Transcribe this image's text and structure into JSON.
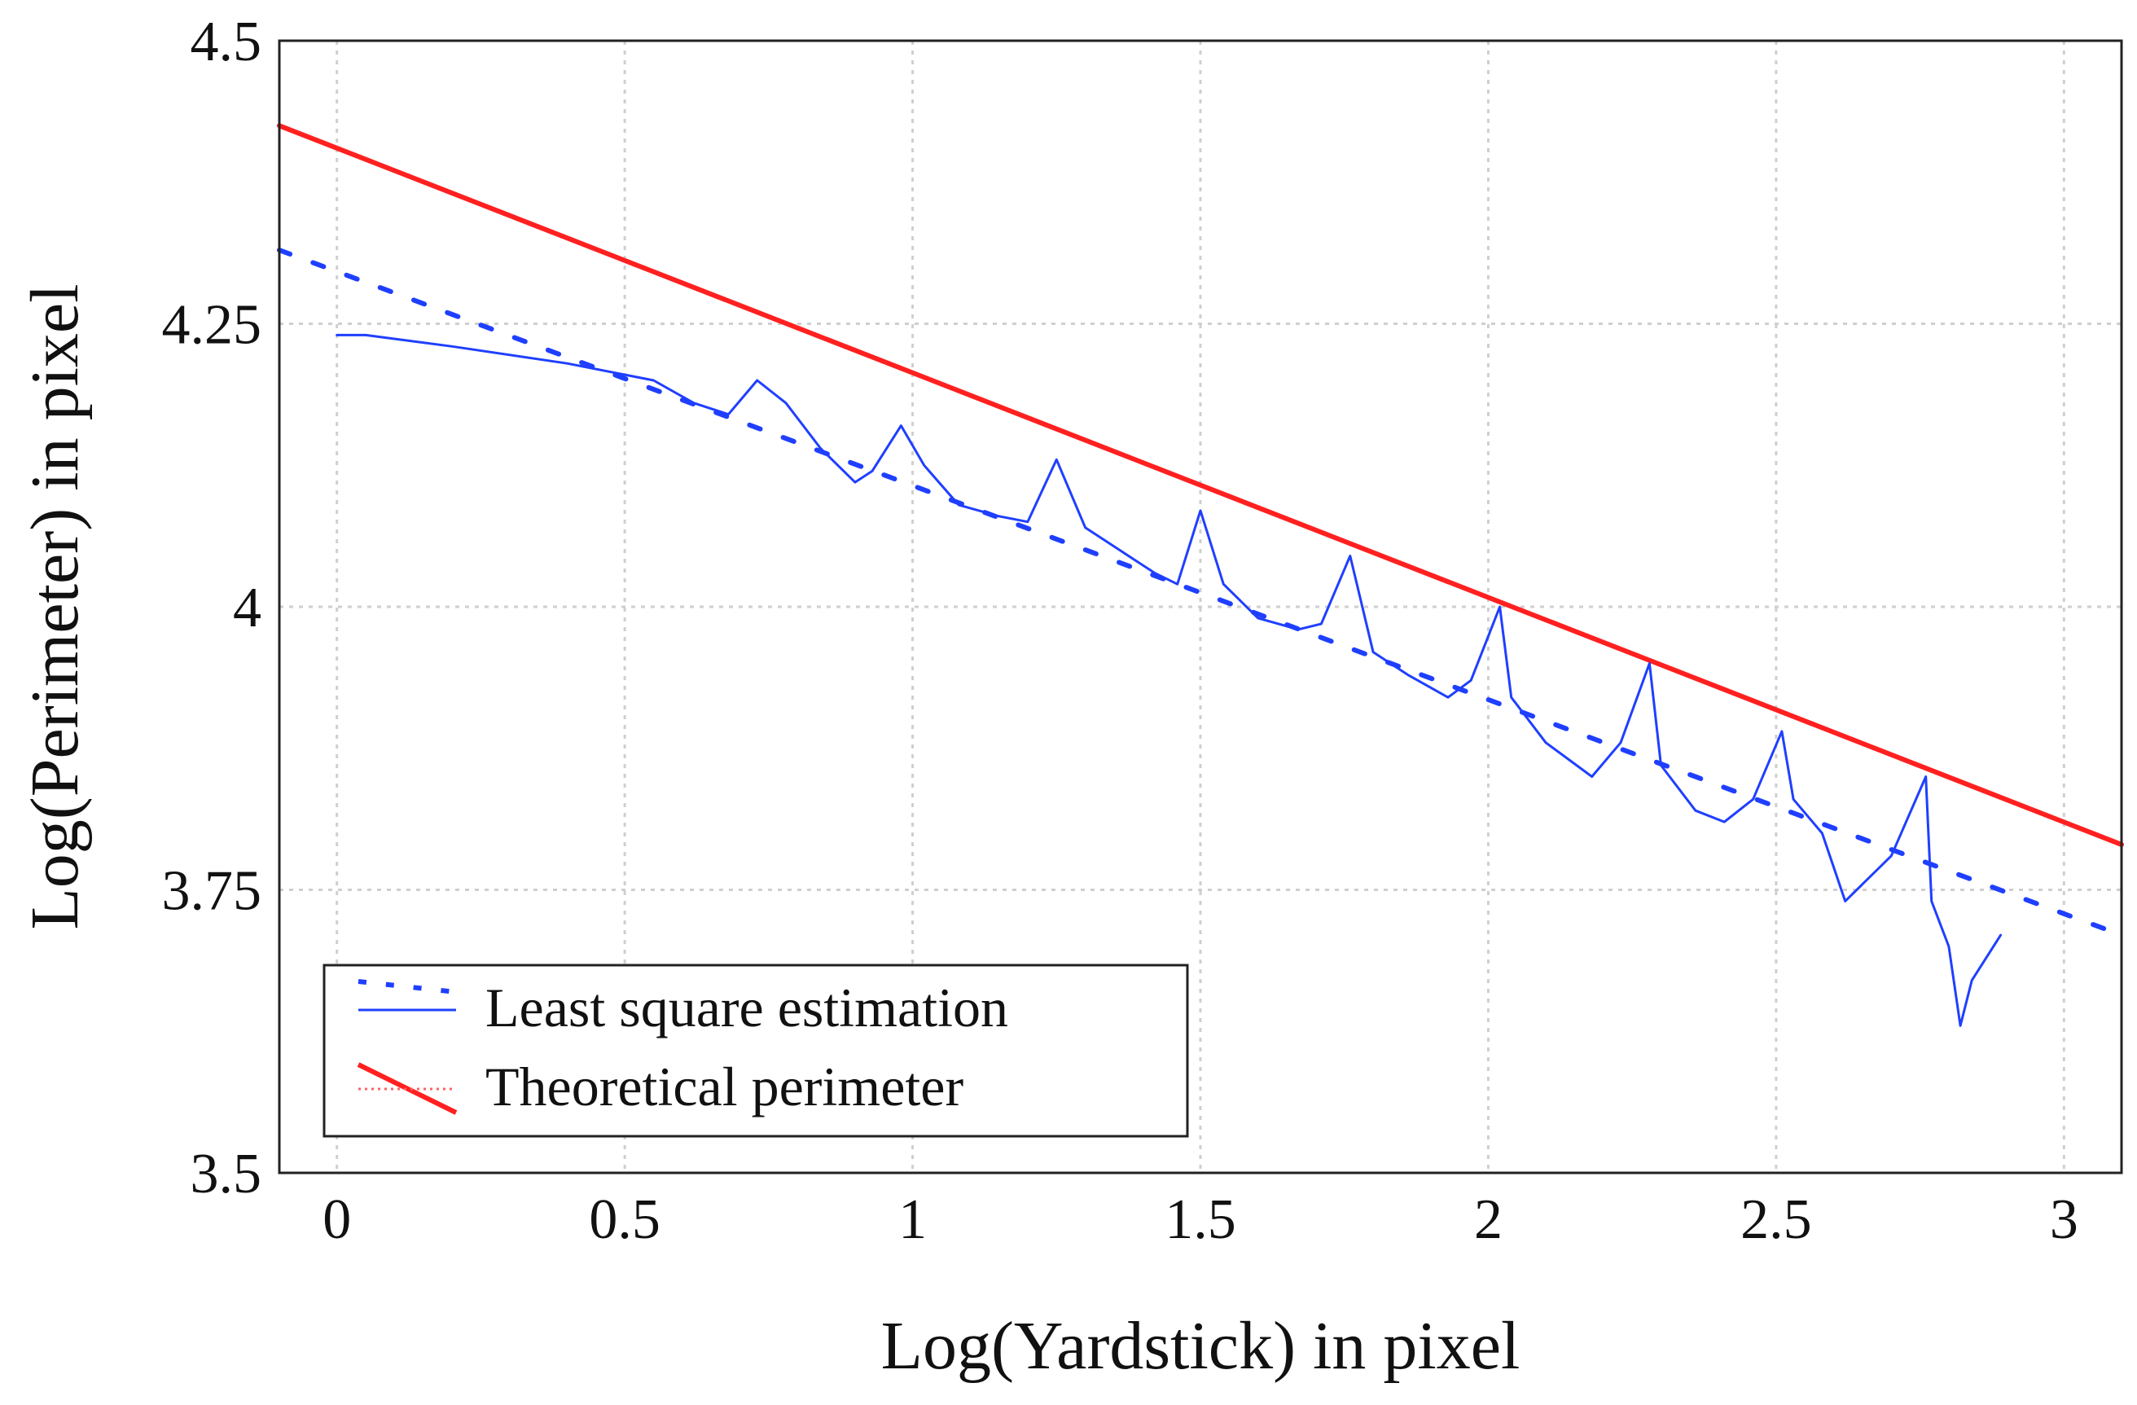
{
  "chart_data": {
    "type": "line",
    "xlabel": "Log(Yardstick) in pixel",
    "ylabel": "Log(Perimeter) in pixel",
    "xlim": [
      -0.1,
      3.1
    ],
    "ylim": [
      3.5,
      4.5
    ],
    "xticks": [
      0,
      0.5,
      1,
      1.5,
      2,
      2.5,
      3
    ],
    "xtick_labels": [
      "0",
      "0.5",
      "1",
      "1.5",
      "2",
      "2.5",
      "3"
    ],
    "yticks": [
      3.5,
      3.75,
      4,
      4.25,
      4.5
    ],
    "ytick_labels": [
      "3.5",
      "3.75",
      "4",
      "4.25",
      "4.5"
    ],
    "grid": true,
    "legend": {
      "position": "bottom-left",
      "entries": [
        "Least square estimation",
        "Theoretical perimeter"
      ]
    },
    "series": [
      {
        "name": "Theoretical perimeter",
        "style": "solid",
        "color": "#ff2020",
        "x": [
          -0.1,
          3.1
        ],
        "y": [
          4.425,
          3.79
        ]
      },
      {
        "name": "Least square estimation (fit)",
        "style": "dashed",
        "color": "#1f3fff",
        "x": [
          -0.1,
          3.1
        ],
        "y": [
          4.315,
          3.71
        ]
      },
      {
        "name": "Least square estimation (measured)",
        "style": "solid",
        "color": "#1f3fff",
        "x": [
          0.0,
          0.05,
          0.2,
          0.4,
          0.55,
          0.62,
          0.68,
          0.73,
          0.78,
          0.84,
          0.9,
          0.93,
          0.98,
          1.02,
          1.08,
          1.15,
          1.2,
          1.25,
          1.3,
          1.36,
          1.42,
          1.46,
          1.5,
          1.54,
          1.6,
          1.67,
          1.71,
          1.76,
          1.8,
          1.86,
          1.93,
          1.97,
          2.02,
          2.04,
          2.1,
          2.18,
          2.23,
          2.28,
          2.3,
          2.36,
          2.41,
          2.46,
          2.51,
          2.53,
          2.58,
          2.62,
          2.7,
          2.76,
          2.77,
          2.8,
          2.82,
          2.84,
          2.89
        ],
        "y": [
          4.24,
          4.24,
          4.23,
          4.215,
          4.2,
          4.18,
          4.17,
          4.2,
          4.18,
          4.14,
          4.11,
          4.12,
          4.16,
          4.125,
          4.09,
          4.08,
          4.075,
          4.13,
          4.07,
          4.05,
          4.03,
          4.02,
          4.085,
          4.02,
          3.99,
          3.98,
          3.985,
          4.045,
          3.96,
          3.94,
          3.92,
          3.935,
          4.0,
          3.92,
          3.88,
          3.85,
          3.88,
          3.95,
          3.86,
          3.82,
          3.81,
          3.83,
          3.89,
          3.83,
          3.8,
          3.74,
          3.78,
          3.85,
          3.74,
          3.7,
          3.63,
          3.67,
          3.71
        ]
      }
    ]
  }
}
